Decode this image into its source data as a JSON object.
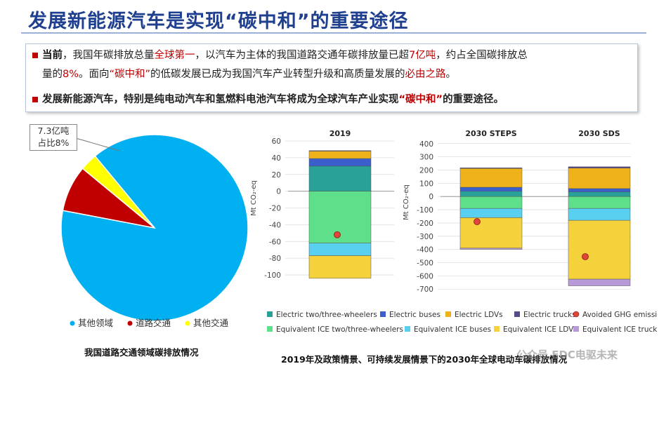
{
  "slide": {
    "title": "发展新能源汽车是实现“碳中和”的重要途径",
    "para1": {
      "lead": "当前",
      "t1": "，我国年碳排放总量",
      "h1": "全球第一",
      "t2": "，以汽车为主体的我国道路交通年碳排放量已超",
      "h2": "7亿吨",
      "t3": "，约占全国碳排放总",
      "t4": "量的",
      "h3": "8%",
      "t5": "。面向",
      "h4": "“碳中和”",
      "t6": "的低碳发展已成为我国汽车产业转型升级和高质量发展的",
      "h5": "必由之路",
      "t7": "。"
    },
    "para2": {
      "t1": "发展新能源汽车，特别是纯电动汽车和氢燃料电池汽车将成为全球汽车产业实现",
      "h1": "“碳中和”",
      "t2": "的重要途径。"
    },
    "caption_left": "我国道路交通领域碳排放情况",
    "caption_right": "2019年及政策情景、可持续发展情景下的2030年全球电动车",
    "caption_right_tail": "碳排放情况",
    "watermark": "公众号 EDC电驱未来"
  },
  "chart_data": [
    {
      "type": "pie",
      "callout": [
        "7.3亿吨",
        "占比8%"
      ],
      "slices": [
        {
          "label": "其他领域",
          "value": 89,
          "color": "#00b0f0"
        },
        {
          "label": "道路交通",
          "value": 8,
          "color": "#c00000"
        },
        {
          "label": "其他交通",
          "value": 3,
          "color": "#ffff00"
        }
      ]
    },
    {
      "type": "bar",
      "stacked": true,
      "ylabel": "Mt CO₂-eq",
      "panels": [
        {
          "title": "2019",
          "ylim": [
            -110,
            60
          ],
          "yticks": [
            60,
            40,
            20,
            0,
            -20,
            -40,
            -60,
            -80,
            -100
          ],
          "positive": [
            {
              "series": "Electric two/three-wheelers",
              "value": 30
            },
            {
              "series": "Electric buses",
              "value": 9
            },
            {
              "series": "Electric LDVs",
              "value": 9
            },
            {
              "series": "Electric trucks",
              "value": 0.5
            }
          ],
          "negative": [
            {
              "series": "Equivalent ICE two/three-wheelers",
              "value": -62
            },
            {
              "series": "Equivalent ICE buses",
              "value": -15
            },
            {
              "series": "Equivalent ICE LDVs",
              "value": -27
            }
          ],
          "avoided": -52
        },
        {
          "title": "2030 STEPS",
          "ylim": [
            -720,
            420
          ],
          "yticks": [
            400,
            300,
            200,
            100,
            0,
            -100,
            -200,
            -300,
            -400,
            -500,
            -600,
            -700
          ],
          "positive": [
            {
              "series": "Electric two/three-wheelers",
              "value": 40
            },
            {
              "series": "Electric buses",
              "value": 30
            },
            {
              "series": "Electric LDVs",
              "value": 142
            },
            {
              "series": "Electric trucks",
              "value": 5
            }
          ],
          "negative": [
            {
              "series": "Equivalent ICE two/three-wheelers",
              "value": -90
            },
            {
              "series": "Equivalent ICE buses",
              "value": -70
            },
            {
              "series": "Equivalent ICE LDVs",
              "value": -230
            },
            {
              "series": "Equivalent ICE trucks",
              "value": -10
            }
          ],
          "avoided": -190
        },
        {
          "title": "2030 SDS",
          "ylim": [
            -720,
            420
          ],
          "yticks": [
            400,
            300,
            200,
            100,
            0,
            -100,
            -200,
            -300,
            -400,
            -500,
            -600,
            -700
          ],
          "positive": [
            {
              "series": "Electric two/three-wheelers",
              "value": 35
            },
            {
              "series": "Electric buses",
              "value": 25
            },
            {
              "series": "Electric LDVs",
              "value": 155
            },
            {
              "series": "Electric trucks",
              "value": 10
            }
          ],
          "negative": [
            {
              "series": "Equivalent ICE two/three-wheelers",
              "value": -90
            },
            {
              "series": "Equivalent ICE buses",
              "value": -90
            },
            {
              "series": "Equivalent ICE LDVs",
              "value": -445
            },
            {
              "series": "Equivalent ICE trucks",
              "value": -50
            }
          ],
          "avoided": -455
        }
      ],
      "legend": [
        {
          "name": "Electric two/three-wheelers",
          "color": "#2aa198",
          "marker": "square"
        },
        {
          "name": "Electric buses",
          "color": "#3a5fcd",
          "marker": "square"
        },
        {
          "name": "Electric LDVs",
          "color": "#f0b21a",
          "marker": "square"
        },
        {
          "name": "Electric trucks",
          "color": "#5b4a8a",
          "marker": "square"
        },
        {
          "name": "Avoided GHG emissions",
          "color": "#e0443a",
          "marker": "circle"
        },
        {
          "name": "Equivalent ICE two/three-wheelers",
          "color": "#5ee08a",
          "marker": "square"
        },
        {
          "name": "Equivalent ICE buses",
          "color": "#5ad0f0",
          "marker": "square"
        },
        {
          "name": "Equivalent ICE LDVs",
          "color": "#f5d23c",
          "marker": "square"
        },
        {
          "name": "Equivalent ICE trucks",
          "color": "#b89ad8",
          "marker": "square"
        }
      ]
    }
  ]
}
